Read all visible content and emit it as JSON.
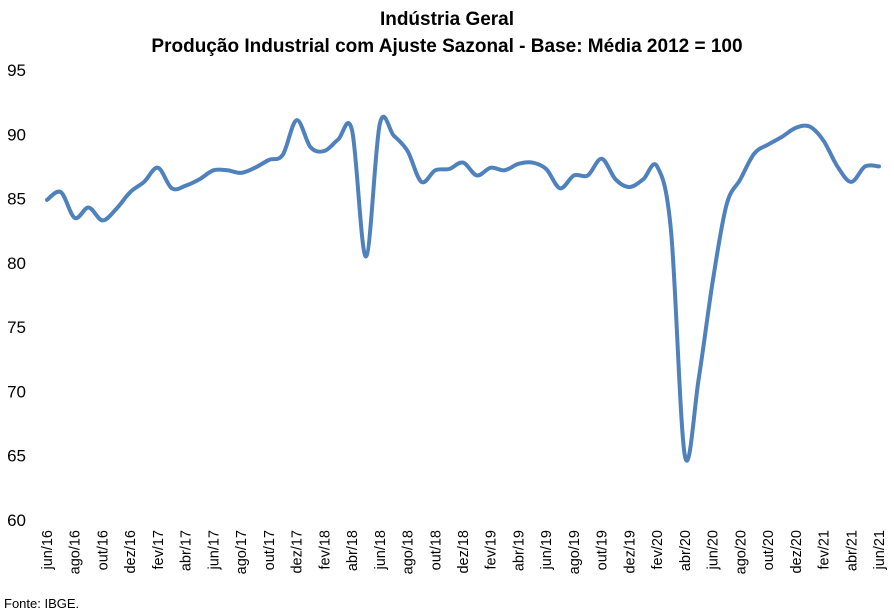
{
  "chart_data": {
    "type": "line",
    "title": "Indústria Geral",
    "subtitle": "Produção Industrial com Ajuste Sazonal - Base: Média 2012 = 100",
    "xlabel": "",
    "ylabel": "",
    "ylim": [
      60,
      95
    ],
    "yticks": [
      "95",
      "90",
      "85",
      "80",
      "75",
      "70",
      "65",
      "60"
    ],
    "grid": false,
    "line_color": "#4F81BD",
    "categories": [
      "jun/16",
      "jul/16",
      "ago/16",
      "set/16",
      "out/16",
      "nov/16",
      "dez/16",
      "jan/17",
      "fev/17",
      "mar/17",
      "abr/17",
      "mai/17",
      "jun/17",
      "jul/17",
      "ago/17",
      "set/17",
      "out/17",
      "nov/17",
      "dez/17",
      "jan/18",
      "fev/18",
      "mar/18",
      "abr/18",
      "mai/18",
      "jun/18",
      "jul/18",
      "ago/18",
      "set/18",
      "out/18",
      "nov/18",
      "dez/18",
      "jan/19",
      "fev/19",
      "mar/19",
      "abr/19",
      "mai/19",
      "jun/19",
      "jul/19",
      "ago/19",
      "set/19",
      "out/19",
      "nov/19",
      "dez/19",
      "jan/20",
      "fev/20",
      "mar/20",
      "abr/20",
      "mai/20",
      "jun/20",
      "jul/20",
      "ago/20",
      "set/20",
      "out/20",
      "nov/20",
      "dez/20",
      "jan/21",
      "fev/21",
      "mar/21",
      "abr/21",
      "mai/21",
      "jun/21"
    ],
    "tick_labels": [
      "jun/16",
      "ago/16",
      "out/16",
      "dez/16",
      "fev/17",
      "abr/17",
      "jun/17",
      "ago/17",
      "out/17",
      "dez/17",
      "fev/18",
      "abr/18",
      "jun/18",
      "ago/18",
      "out/18",
      "dez/18",
      "fev/19",
      "abr/19",
      "jun/19",
      "ago/19",
      "out/19",
      "dez/19",
      "fev/20",
      "abr/20",
      "jun/20",
      "ago/20",
      "out/20",
      "dez/20",
      "fev/21",
      "abr/21",
      "jun/21"
    ],
    "values": [
      84.9,
      85.5,
      83.5,
      84.3,
      83.3,
      84.2,
      85.5,
      86.3,
      87.4,
      85.8,
      86.0,
      86.5,
      87.2,
      87.2,
      87.0,
      87.4,
      88.0,
      88.4,
      91.1,
      89.0,
      88.7,
      89.6,
      90.3,
      80.5,
      90.8,
      89.9,
      88.7,
      86.3,
      87.2,
      87.3,
      87.8,
      86.8,
      87.4,
      87.2,
      87.7,
      87.8,
      87.3,
      85.8,
      86.8,
      86.8,
      88.1,
      86.5,
      85.9,
      86.5,
      87.5,
      82.5,
      65.0,
      71.0,
      78.5,
      84.5,
      86.5,
      88.5,
      89.2,
      89.8,
      90.5,
      90.6,
      89.5,
      87.5,
      86.3,
      87.5,
      87.5
    ]
  },
  "source": "Fonte: IBGE."
}
